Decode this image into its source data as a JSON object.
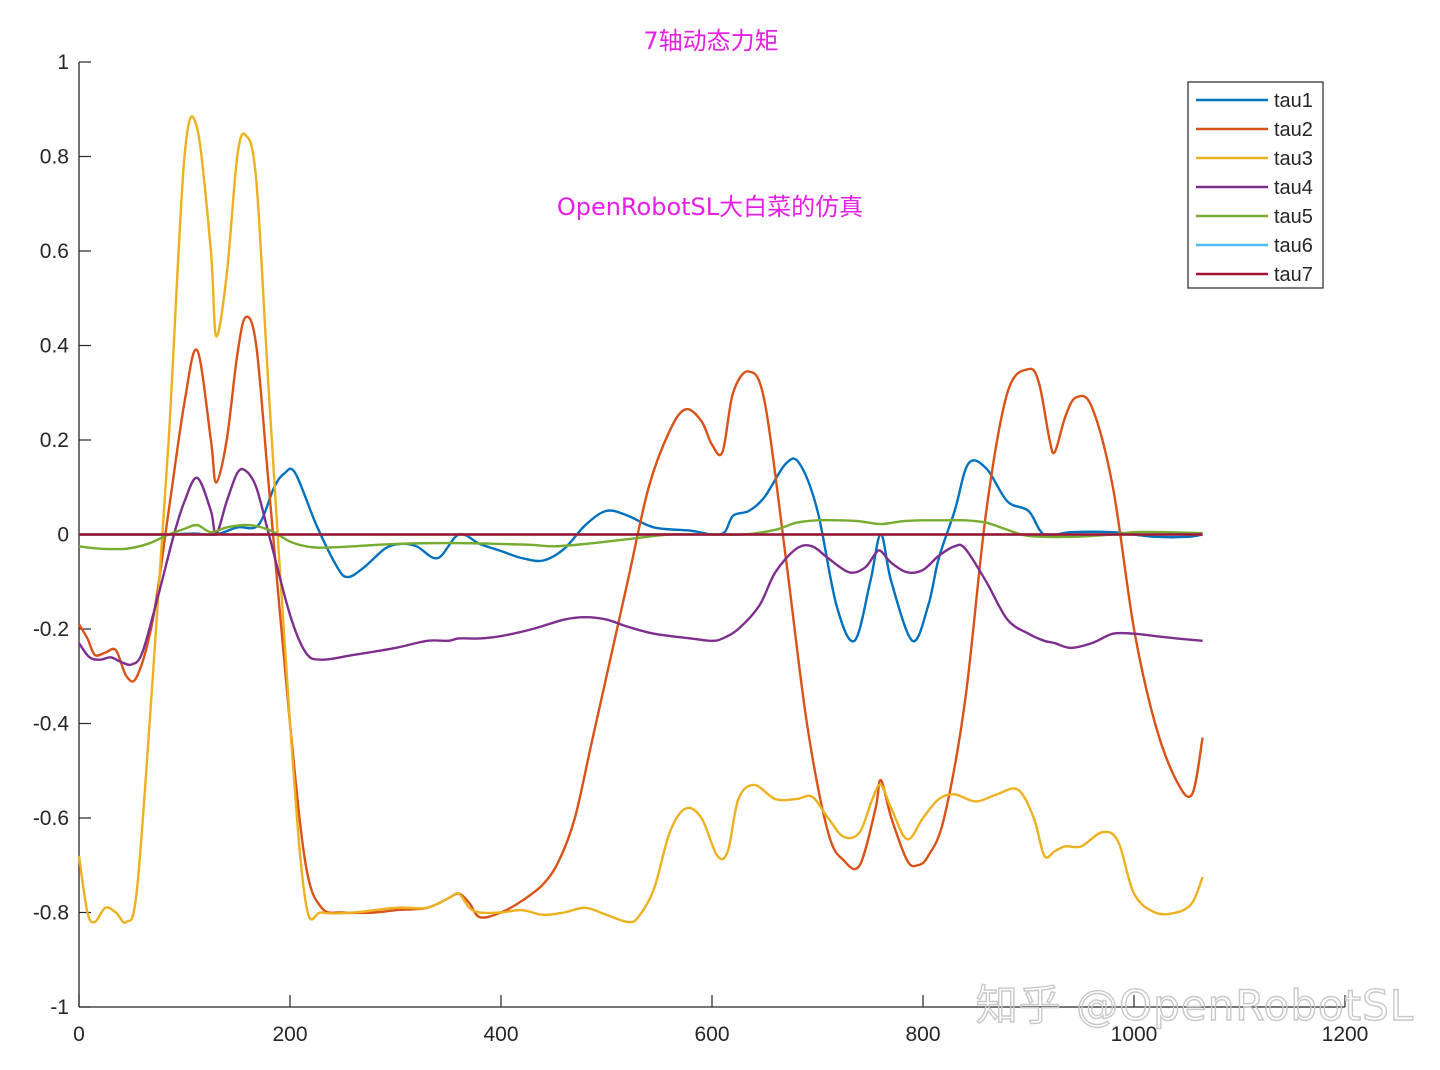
{
  "watermark": "知乎 @OpenRobotSL",
  "chart_data": {
    "type": "line",
    "title": "7轴动态力矩",
    "annotation": "OpenRobotSL大白菜的仿真",
    "xlabel": "",
    "ylabel": "",
    "xlim": [
      0,
      1200
    ],
    "ylim": [
      -1,
      1
    ],
    "xticks": [
      0,
      200,
      400,
      600,
      800,
      1000,
      1200
    ],
    "yticks": [
      -1,
      -0.8,
      -0.6,
      -0.4,
      -0.2,
      0,
      0.2,
      0.4,
      0.6,
      0.8,
      1
    ],
    "grid": false,
    "legend_position": "top-right",
    "series": [
      {
        "name": "tau1",
        "color": "#0072bd",
        "x": [
          0,
          50,
          80,
          95,
          110,
          130,
          150,
          170,
          185,
          195,
          205,
          225,
          245,
          255,
          270,
          290,
          305,
          320,
          340,
          360,
          380,
          400,
          420,
          440,
          460,
          480,
          500,
          520,
          545,
          580,
          600,
          612,
          620,
          635,
          650,
          670,
          683,
          700,
          718,
          735,
          750,
          760,
          770,
          790,
          805,
          815,
          830,
          843,
          860,
          880,
          900,
          915,
          940,
          980,
          1000,
          1020,
          1050,
          1065
        ],
        "y": [
          0,
          0,
          0,
          0.001,
          0.002,
          0,
          0.015,
          0.02,
          0.1,
          0.13,
          0.13,
          0.02,
          -0.07,
          -0.09,
          -0.07,
          -0.03,
          -0.02,
          -0.025,
          -0.05,
          0.0,
          -0.02,
          -0.035,
          -0.05,
          -0.055,
          -0.03,
          0.02,
          0.05,
          0.04,
          0.015,
          0.008,
          0.0,
          0.005,
          0.04,
          0.05,
          0.08,
          0.15,
          0.15,
          0.05,
          -0.15,
          -0.225,
          -0.1,
          0.0,
          -0.1,
          -0.225,
          -0.15,
          -0.05,
          0.05,
          0.15,
          0.14,
          0.07,
          0.05,
          0.0,
          0.005,
          0.005,
          0.0,
          -0.005,
          -0.005,
          0.0
        ]
      },
      {
        "name": "tau2",
        "color": "#d95319",
        "x": [
          0,
          8,
          15,
          25,
          35,
          45,
          55,
          70,
          85,
          100,
          112,
          125,
          130,
          140,
          150,
          158,
          168,
          180,
          200,
          215,
          230,
          250,
          280,
          300,
          330,
          350,
          360,
          370,
          380,
          400,
          420,
          440,
          455,
          470,
          485,
          500,
          520,
          540,
          560,
          575,
          590,
          600,
          610,
          620,
          635,
          650,
          670,
          690,
          710,
          725,
          740,
          755,
          760,
          770,
          785,
          795,
          805,
          820,
          840,
          860,
          880,
          900,
          910,
          920,
          925,
          935,
          945,
          960,
          980,
          1000,
          1020,
          1040,
          1055,
          1065
        ],
        "y": [
          -0.19,
          -0.22,
          -0.255,
          -0.25,
          -0.245,
          -0.3,
          -0.3,
          -0.18,
          0.05,
          0.28,
          0.39,
          0.2,
          0.11,
          0.2,
          0.38,
          0.46,
          0.4,
          0.1,
          -0.4,
          -0.7,
          -0.79,
          -0.8,
          -0.8,
          -0.795,
          -0.79,
          -0.77,
          -0.76,
          -0.78,
          -0.81,
          -0.8,
          -0.775,
          -0.74,
          -0.69,
          -0.6,
          -0.45,
          -0.3,
          -0.1,
          0.1,
          0.22,
          0.265,
          0.24,
          0.19,
          0.175,
          0.3,
          0.345,
          0.28,
          -0.05,
          -0.4,
          -0.63,
          -0.69,
          -0.7,
          -0.58,
          -0.52,
          -0.6,
          -0.69,
          -0.7,
          -0.68,
          -0.6,
          -0.35,
          0.05,
          0.3,
          0.35,
          0.32,
          0.2,
          0.175,
          0.25,
          0.29,
          0.27,
          0.1,
          -0.2,
          -0.4,
          -0.52,
          -0.55,
          -0.43
        ]
      },
      {
        "name": "tau3",
        "color": "#edb120",
        "x": [
          0,
          8,
          15,
          25,
          35,
          45,
          55,
          70,
          85,
          100,
          112,
          125,
          130,
          140,
          150,
          158,
          168,
          180,
          200,
          215,
          230,
          260,
          300,
          330,
          350,
          360,
          370,
          380,
          400,
          420,
          440,
          460,
          480,
          500,
          520,
          530,
          545,
          560,
          575,
          590,
          605,
          615,
          625,
          640,
          660,
          680,
          695,
          710,
          725,
          740,
          752,
          760,
          770,
          785,
          800,
          815,
          830,
          850,
          870,
          890,
          905,
          915,
          925,
          935,
          950,
          970,
          985,
          1000,
          1020,
          1040,
          1055,
          1065
        ],
        "y": [
          -0.68,
          -0.8,
          -0.82,
          -0.79,
          -0.8,
          -0.82,
          -0.75,
          -0.3,
          0.2,
          0.8,
          0.86,
          0.6,
          0.42,
          0.55,
          0.8,
          0.845,
          0.75,
          0.3,
          -0.4,
          -0.78,
          -0.8,
          -0.8,
          -0.79,
          -0.79,
          -0.77,
          -0.76,
          -0.79,
          -0.8,
          -0.8,
          -0.795,
          -0.805,
          -0.8,
          -0.79,
          -0.805,
          -0.82,
          -0.81,
          -0.75,
          -0.63,
          -0.58,
          -0.6,
          -0.68,
          -0.67,
          -0.56,
          -0.53,
          -0.56,
          -0.56,
          -0.555,
          -0.6,
          -0.64,
          -0.63,
          -0.56,
          -0.53,
          -0.58,
          -0.645,
          -0.6,
          -0.56,
          -0.55,
          -0.565,
          -0.55,
          -0.54,
          -0.6,
          -0.68,
          -0.67,
          -0.66,
          -0.66,
          -0.63,
          -0.65,
          -0.76,
          -0.8,
          -0.8,
          -0.78,
          -0.725
        ]
      },
      {
        "name": "tau4",
        "color": "#7e2f8e",
        "x": [
          0,
          10,
          20,
          30,
          40,
          50,
          60,
          75,
          90,
          100,
          112,
          125,
          130,
          140,
          150,
          158,
          168,
          180,
          200,
          215,
          230,
          260,
          300,
          330,
          350,
          360,
          380,
          400,
          430,
          460,
          480,
          500,
          520,
          545,
          580,
          600,
          610,
          625,
          645,
          660,
          680,
          695,
          710,
          730,
          745,
          755,
          760,
          770,
          785,
          800,
          815,
          830,
          840,
          860,
          880,
          900,
          915,
          925,
          940,
          960,
          980,
          1000,
          1020,
          1040,
          1065
        ],
        "y": [
          -0.23,
          -0.26,
          -0.265,
          -0.26,
          -0.27,
          -0.275,
          -0.25,
          -0.13,
          0.0,
          0.07,
          0.12,
          0.05,
          0.0,
          0.07,
          0.13,
          0.135,
          0.1,
          0.0,
          -0.17,
          -0.25,
          -0.265,
          -0.255,
          -0.24,
          -0.225,
          -0.225,
          -0.22,
          -0.22,
          -0.215,
          -0.2,
          -0.18,
          -0.175,
          -0.18,
          -0.195,
          -0.21,
          -0.22,
          -0.225,
          -0.22,
          -0.2,
          -0.15,
          -0.08,
          -0.03,
          -0.025,
          -0.05,
          -0.08,
          -0.07,
          -0.04,
          -0.035,
          -0.06,
          -0.08,
          -0.075,
          -0.045,
          -0.025,
          -0.03,
          -0.1,
          -0.18,
          -0.21,
          -0.225,
          -0.23,
          -0.24,
          -0.23,
          -0.21,
          -0.21,
          -0.215,
          -0.22,
          -0.225
        ]
      },
      {
        "name": "tau5",
        "color": "#77ac30",
        "x": [
          0,
          20,
          45,
          65,
          85,
          100,
          112,
          125,
          140,
          160,
          180,
          200,
          215,
          230,
          260,
          300,
          350,
          400,
          430,
          450,
          480,
          520,
          560,
          600,
          630,
          660,
          680,
          700,
          720,
          740,
          760,
          780,
          800,
          820,
          840,
          860,
          880,
          900,
          940,
          980,
          1000,
          1030,
          1065
        ],
        "y": [
          -0.025,
          -0.03,
          -0.03,
          -0.02,
          0.0,
          0.012,
          0.02,
          0.005,
          0.015,
          0.02,
          0.01,
          -0.015,
          -0.025,
          -0.028,
          -0.025,
          -0.02,
          -0.018,
          -0.02,
          -0.022,
          -0.025,
          -0.02,
          -0.01,
          0.0,
          0.0,
          0.0,
          0.01,
          0.025,
          0.03,
          0.03,
          0.028,
          0.022,
          0.028,
          0.03,
          0.03,
          0.03,
          0.025,
          0.01,
          -0.003,
          -0.005,
          0.0,
          0.005,
          0.005,
          0.003
        ]
      },
      {
        "name": "tau6",
        "color": "#4dbeee",
        "x": [
          0,
          1065
        ],
        "y": [
          0,
          0
        ]
      },
      {
        "name": "tau7",
        "color": "#a2142f",
        "x": [
          0,
          1065
        ],
        "y": [
          0,
          0
        ]
      }
    ]
  }
}
